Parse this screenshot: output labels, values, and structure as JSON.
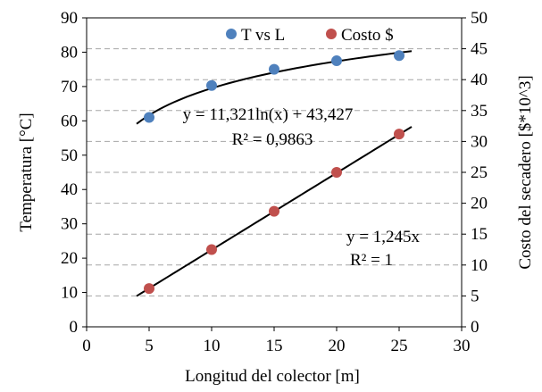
{
  "chart_data": {
    "type": "scatter",
    "x": [
      5,
      10,
      15,
      20,
      25
    ],
    "xlabel": "Longitud del colector [m]",
    "ylabel": "Temperatura [°C]",
    "y2label": "Costo del secadero [$*10^3]",
    "xlim": [
      0,
      30
    ],
    "ylim": [
      0,
      90
    ],
    "y2lim": [
      0,
      50
    ],
    "xticks": [
      "0",
      "5",
      "10",
      "15",
      "20",
      "25",
      "30"
    ],
    "yticks": [
      "0",
      "10",
      "20",
      "30",
      "40",
      "50",
      "60",
      "70",
      "80",
      "90"
    ],
    "y2ticks": [
      "0",
      "5",
      "10",
      "15",
      "20",
      "25",
      "30",
      "35",
      "40",
      "45",
      "50"
    ],
    "grid": "horizontal dashed",
    "legend_position": "top",
    "series": [
      {
        "name": "T vs L",
        "axis": "left",
        "color": "#4f81bd",
        "values": [
          61,
          70.3,
          75,
          77.5,
          79
        ],
        "trendline": {
          "type": "log",
          "a": 11.321,
          "b": 43.427,
          "x_range": [
            4,
            26
          ],
          "equation": "y = 11,321ln(x) + 43,427",
          "r2": "R² = 0,9863"
        }
      },
      {
        "name": "Costo $",
        "axis": "right",
        "color": "#c0504d",
        "values": [
          6.2,
          12.5,
          18.7,
          25,
          31.2
        ],
        "trendline": {
          "type": "linear",
          "slope": 1.245,
          "x_range": [
            4,
            26
          ],
          "equation": "y = 1,245x",
          "r2": "R² = 1"
        }
      }
    ]
  }
}
